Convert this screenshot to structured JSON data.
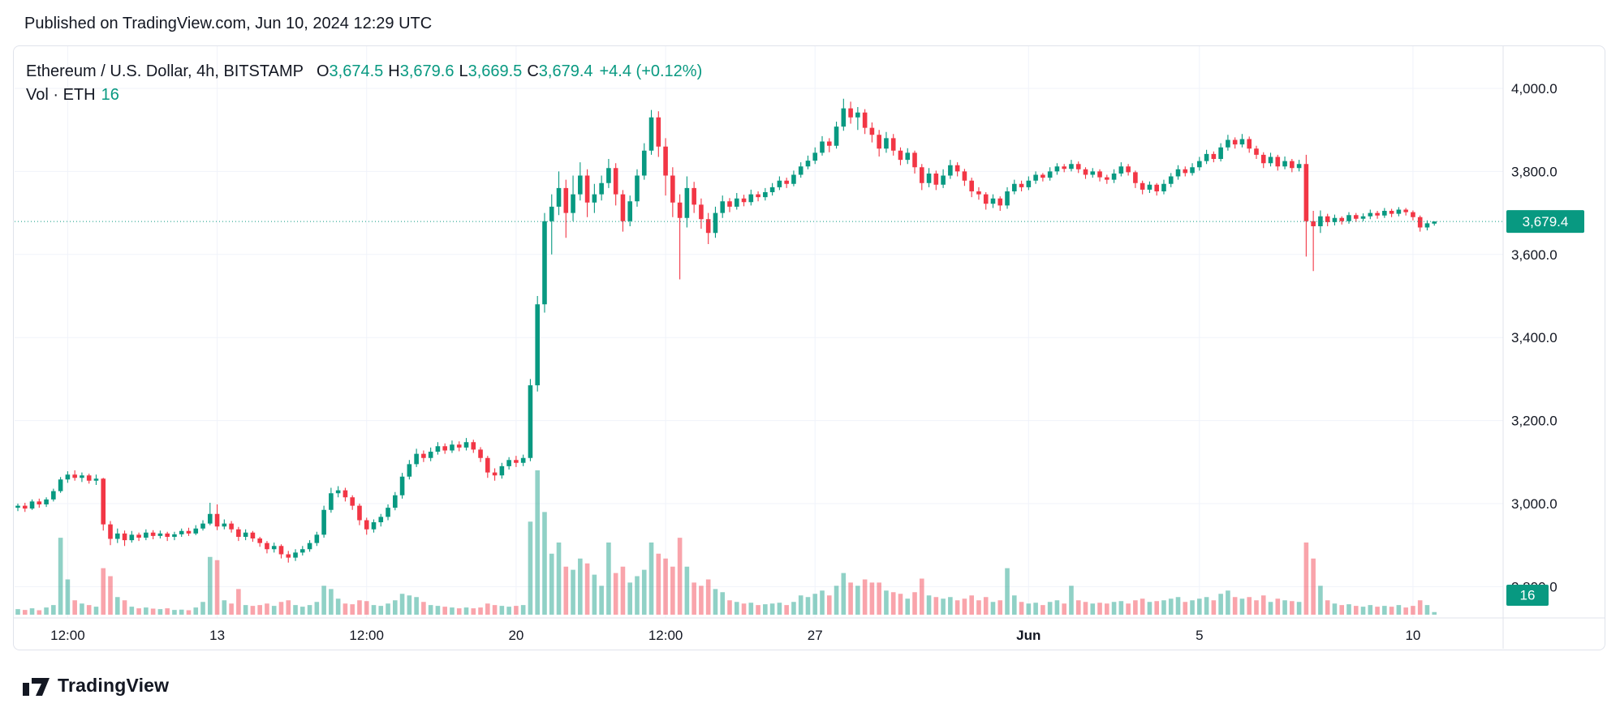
{
  "header": {
    "published": "Published on TradingView.com, Jun 10, 2024 12:29 UTC"
  },
  "legend": {
    "symbol": "Ethereum / U.S. Dollar, 4h, BITSTAMP",
    "ohlc": [
      {
        "label": "O",
        "value": "3,674.5"
      },
      {
        "label": "H",
        "value": "3,679.6"
      },
      {
        "label": "L",
        "value": "3,669.5"
      },
      {
        "label": "C",
        "value": "3,679.4"
      }
    ],
    "change": "+4.4 (+0.12%)",
    "volume_label": "Vol · ETH",
    "volume_value": "16"
  },
  "price_axis": {
    "labels": [
      {
        "text": "4,000.0",
        "price": 4000
      },
      {
        "text": "3,800.0",
        "price": 3800
      },
      {
        "text": "3,600.0",
        "price": 3600
      },
      {
        "text": "3,400.0",
        "price": 3400
      },
      {
        "text": "3,200.0",
        "price": 3200
      },
      {
        "text": "3,000.0",
        "price": 3000
      },
      {
        "text": "2,800.0",
        "price": 2800
      }
    ],
    "last_price_badge": "3,679.4",
    "volume_badge": "16"
  },
  "time_axis": {
    "labels": [
      {
        "text": "12:00",
        "index": 7,
        "bold": false
      },
      {
        "text": "13",
        "index": 28,
        "bold": false
      },
      {
        "text": "12:00",
        "index": 49,
        "bold": false
      },
      {
        "text": "20",
        "index": 70,
        "bold": false
      },
      {
        "text": "12:00",
        "index": 91,
        "bold": false
      },
      {
        "text": "27",
        "index": 112,
        "bold": false
      },
      {
        "text": "Jun",
        "index": 142,
        "bold": true
      },
      {
        "text": "5",
        "index": 166,
        "bold": false
      },
      {
        "text": "10",
        "index": 196,
        "bold": false
      }
    ]
  },
  "footer": {
    "brand": "TradingView"
  },
  "colors": {
    "up": "#089981",
    "down": "#f23645",
    "vol_up": "rgba(8,153,129,0.45)",
    "vol_down": "rgba(242,54,69,0.45)",
    "text": "#131722",
    "grid": "#f0f3fa",
    "border": "#e0e3eb",
    "badge_text": "#ffffff"
  },
  "chart_data": {
    "type": "candlestick",
    "title": "Ethereum / U.S. Dollar",
    "exchange": "BITSTAMP",
    "interval": "4h",
    "start_time": "2024-05-08 08:00 UTC",
    "interval_hours": 4,
    "columns": [
      "open",
      "high",
      "low",
      "close",
      "volume"
    ],
    "last_price": 3679.4,
    "last_volume": 16,
    "price_axis_range_shown": [
      2800,
      4000
    ],
    "legend_note": "volume units as displayed; last bar = 16",
    "candles": [
      [
        2990,
        3000,
        2982,
        2995,
        35
      ],
      [
        2995,
        3002,
        2980,
        2988,
        30
      ],
      [
        2988,
        3010,
        2985,
        3005,
        40
      ],
      [
        3005,
        3012,
        2990,
        2998,
        28
      ],
      [
        2998,
        3015,
        2992,
        3010,
        45
      ],
      [
        3010,
        3036,
        3005,
        3030,
        60
      ],
      [
        3030,
        3064,
        3026,
        3058,
        480
      ],
      [
        3058,
        3078,
        3050,
        3070,
        220
      ],
      [
        3070,
        3080,
        3055,
        3062,
        90
      ],
      [
        3062,
        3075,
        3052,
        3068,
        70
      ],
      [
        3068,
        3072,
        3048,
        3055,
        60
      ],
      [
        3055,
        3070,
        3045,
        3060,
        50
      ],
      [
        3060,
        3062,
        2935,
        2950,
        290
      ],
      [
        2950,
        2958,
        2900,
        2915,
        240
      ],
      [
        2915,
        2940,
        2905,
        2928,
        110
      ],
      [
        2928,
        2935,
        2898,
        2912,
        90
      ],
      [
        2912,
        2934,
        2906,
        2925,
        50
      ],
      [
        2925,
        2930,
        2910,
        2918,
        40
      ],
      [
        2918,
        2938,
        2912,
        2930,
        45
      ],
      [
        2930,
        2936,
        2914,
        2922,
        38
      ],
      [
        2922,
        2935,
        2916,
        2928,
        35
      ],
      [
        2928,
        2932,
        2910,
        2920,
        40
      ],
      [
        2920,
        2932,
        2912,
        2926,
        30
      ],
      [
        2926,
        2940,
        2920,
        2934,
        32
      ],
      [
        2934,
        2942,
        2922,
        2928,
        28
      ],
      [
        2928,
        2948,
        2924,
        2940,
        45
      ],
      [
        2940,
        2960,
        2935,
        2952,
        80
      ],
      [
        2952,
        3002,
        2948,
        2975,
        360
      ],
      [
        2975,
        2998,
        2936,
        2945,
        340
      ],
      [
        2945,
        2962,
        2938,
        2952,
        90
      ],
      [
        2952,
        2958,
        2930,
        2938,
        70
      ],
      [
        2938,
        2944,
        2910,
        2920,
        160
      ],
      [
        2920,
        2938,
        2912,
        2930,
        60
      ],
      [
        2930,
        2934,
        2908,
        2916,
        55
      ],
      [
        2916,
        2920,
        2896,
        2905,
        60
      ],
      [
        2905,
        2910,
        2880,
        2890,
        70
      ],
      [
        2890,
        2906,
        2882,
        2898,
        55
      ],
      [
        2898,
        2902,
        2868,
        2878,
        80
      ],
      [
        2878,
        2886,
        2858,
        2870,
        90
      ],
      [
        2870,
        2890,
        2862,
        2882,
        60
      ],
      [
        2882,
        2898,
        2875,
        2890,
        50
      ],
      [
        2890,
        2912,
        2884,
        2905,
        60
      ],
      [
        2905,
        2932,
        2898,
        2925,
        80
      ],
      [
        2925,
        2995,
        2918,
        2985,
        180
      ],
      [
        2985,
        3038,
        2978,
        3025,
        160
      ],
      [
        3025,
        3042,
        3015,
        3032,
        100
      ],
      [
        3032,
        3038,
        3005,
        3015,
        70
      ],
      [
        3015,
        3020,
        2985,
        2995,
        65
      ],
      [
        2995,
        3000,
        2948,
        2960,
        90
      ],
      [
        2960,
        2966,
        2925,
        2938,
        85
      ],
      [
        2938,
        2962,
        2930,
        2955,
        60
      ],
      [
        2955,
        2975,
        2945,
        2968,
        55
      ],
      [
        2968,
        2998,
        2960,
        2990,
        70
      ],
      [
        2990,
        3028,
        2984,
        3020,
        90
      ],
      [
        3020,
        3074,
        3012,
        3065,
        130
      ],
      [
        3065,
        3105,
        3058,
        3095,
        120
      ],
      [
        3095,
        3132,
        3088,
        3120,
        110
      ],
      [
        3120,
        3128,
        3100,
        3110,
        80
      ],
      [
        3110,
        3135,
        3102,
        3125,
        60
      ],
      [
        3125,
        3148,
        3118,
        3138,
        55
      ],
      [
        3138,
        3145,
        3120,
        3128,
        50
      ],
      [
        3128,
        3152,
        3122,
        3142,
        45
      ],
      [
        3142,
        3150,
        3126,
        3135,
        40
      ],
      [
        3135,
        3158,
        3128,
        3148,
        45
      ],
      [
        3148,
        3154,
        3122,
        3130,
        40
      ],
      [
        3130,
        3136,
        3100,
        3110,
        45
      ],
      [
        3110,
        3115,
        3062,
        3075,
        70
      ],
      [
        3075,
        3085,
        3055,
        3068,
        60
      ],
      [
        3068,
        3098,
        3060,
        3090,
        55
      ],
      [
        3090,
        3112,
        3082,
        3105,
        50
      ],
      [
        3105,
        3115,
        3088,
        3098,
        55
      ],
      [
        3098,
        3118,
        3090,
        3110,
        60
      ],
      [
        3110,
        3300,
        3102,
        3285,
        580
      ],
      [
        3285,
        3500,
        3270,
        3480,
        900
      ],
      [
        3480,
        3700,
        3460,
        3680,
        640
      ],
      [
        3680,
        3745,
        3600,
        3715,
        380
      ],
      [
        3715,
        3800,
        3695,
        3760,
        450
      ],
      [
        3760,
        3780,
        3640,
        3700,
        300
      ],
      [
        3700,
        3790,
        3680,
        3745,
        280
      ],
      [
        3745,
        3822,
        3730,
        3790,
        350
      ],
      [
        3790,
        3805,
        3690,
        3725,
        320
      ],
      [
        3725,
        3770,
        3700,
        3745,
        250
      ],
      [
        3745,
        3790,
        3730,
        3772,
        180
      ],
      [
        3772,
        3830,
        3760,
        3808,
        450
      ],
      [
        3808,
        3820,
        3718,
        3745,
        260
      ],
      [
        3745,
        3755,
        3655,
        3680,
        300
      ],
      [
        3680,
        3742,
        3668,
        3728,
        200
      ],
      [
        3728,
        3805,
        3715,
        3790,
        240
      ],
      [
        3790,
        3868,
        3780,
        3850,
        280
      ],
      [
        3850,
        3948,
        3840,
        3930,
        450
      ],
      [
        3930,
        3945,
        3835,
        3860,
        380
      ],
      [
        3860,
        3880,
        3742,
        3790,
        350
      ],
      [
        3790,
        3810,
        3690,
        3725,
        300
      ],
      [
        3725,
        3745,
        3540,
        3688,
        480
      ],
      [
        3688,
        3788,
        3665,
        3760,
        300
      ],
      [
        3760,
        3775,
        3700,
        3720,
        200
      ],
      [
        3720,
        3735,
        3662,
        3685,
        180
      ],
      [
        3685,
        3700,
        3625,
        3652,
        220
      ],
      [
        3652,
        3715,
        3640,
        3700,
        160
      ],
      [
        3700,
        3742,
        3688,
        3728,
        140
      ],
      [
        3728,
        3736,
        3702,
        3715,
        90
      ],
      [
        3715,
        3748,
        3708,
        3735,
        80
      ],
      [
        3735,
        3744,
        3716,
        3726,
        70
      ],
      [
        3726,
        3756,
        3718,
        3745,
        75
      ],
      [
        3745,
        3752,
        3728,
        3738,
        60
      ],
      [
        3738,
        3760,
        3730,
        3750,
        65
      ],
      [
        3750,
        3772,
        3742,
        3762,
        70
      ],
      [
        3762,
        3788,
        3755,
        3778,
        75
      ],
      [
        3778,
        3785,
        3760,
        3770,
        60
      ],
      [
        3770,
        3802,
        3764,
        3792,
        80
      ],
      [
        3792,
        3822,
        3785,
        3812,
        120
      ],
      [
        3812,
        3838,
        3805,
        3826,
        110
      ],
      [
        3826,
        3858,
        3818,
        3845,
        130
      ],
      [
        3845,
        3885,
        3838,
        3872,
        150
      ],
      [
        3872,
        3880,
        3846,
        3862,
        120
      ],
      [
        3862,
        3920,
        3855,
        3908,
        180
      ],
      [
        3908,
        3975,
        3898,
        3952,
        260
      ],
      [
        3952,
        3968,
        3915,
        3930,
        200
      ],
      [
        3930,
        3955,
        3900,
        3942,
        180
      ],
      [
        3942,
        3950,
        3890,
        3905,
        220
      ],
      [
        3905,
        3918,
        3870,
        3888,
        200
      ],
      [
        3888,
        3900,
        3836,
        3855,
        200
      ],
      [
        3855,
        3895,
        3845,
        3880,
        150
      ],
      [
        3880,
        3890,
        3838,
        3850,
        140
      ],
      [
        3850,
        3858,
        3815,
        3828,
        130
      ],
      [
        3828,
        3856,
        3818,
        3845,
        100
      ],
      [
        3845,
        3850,
        3795,
        3810,
        140
      ],
      [
        3810,
        3818,
        3755,
        3772,
        225
      ],
      [
        3772,
        3808,
        3762,
        3795,
        120
      ],
      [
        3795,
        3802,
        3755,
        3768,
        110
      ],
      [
        3768,
        3805,
        3760,
        3790,
        100
      ],
      [
        3790,
        3828,
        3782,
        3815,
        110
      ],
      [
        3815,
        3822,
        3788,
        3800,
        90
      ],
      [
        3800,
        3806,
        3765,
        3778,
        100
      ],
      [
        3778,
        3785,
        3738,
        3752,
        120
      ],
      [
        3752,
        3762,
        3732,
        3745,
        90
      ],
      [
        3745,
        3750,
        3708,
        3722,
        110
      ],
      [
        3722,
        3745,
        3712,
        3735,
        80
      ],
      [
        3735,
        3740,
        3705,
        3718,
        90
      ],
      [
        3718,
        3762,
        3710,
        3752,
        290
      ],
      [
        3752,
        3780,
        3745,
        3770,
        120
      ],
      [
        3770,
        3778,
        3752,
        3762,
        80
      ],
      [
        3762,
        3788,
        3755,
        3778,
        70
      ],
      [
        3778,
        3800,
        3770,
        3792,
        75
      ],
      [
        3792,
        3796,
        3776,
        3785,
        60
      ],
      [
        3785,
        3810,
        3778,
        3800,
        80
      ],
      [
        3800,
        3820,
        3792,
        3812,
        90
      ],
      [
        3812,
        3818,
        3798,
        3806,
        70
      ],
      [
        3806,
        3828,
        3800,
        3818,
        180
      ],
      [
        3818,
        3824,
        3796,
        3805,
        90
      ],
      [
        3805,
        3810,
        3782,
        3792,
        80
      ],
      [
        3792,
        3808,
        3785,
        3800,
        70
      ],
      [
        3800,
        3805,
        3776,
        3786,
        75
      ],
      [
        3786,
        3792,
        3770,
        3780,
        70
      ],
      [
        3780,
        3805,
        3772,
        3795,
        80
      ],
      [
        3795,
        3822,
        3788,
        3812,
        85
      ],
      [
        3812,
        3818,
        3790,
        3798,
        70
      ],
      [
        3798,
        3802,
        3760,
        3772,
        90
      ],
      [
        3772,
        3778,
        3745,
        3756,
        100
      ],
      [
        3756,
        3776,
        3748,
        3768,
        80
      ],
      [
        3768,
        3772,
        3742,
        3752,
        85
      ],
      [
        3752,
        3780,
        3745,
        3770,
        90
      ],
      [
        3770,
        3796,
        3762,
        3788,
        100
      ],
      [
        3788,
        3815,
        3780,
        3805,
        110
      ],
      [
        3805,
        3812,
        3788,
        3796,
        80
      ],
      [
        3796,
        3820,
        3790,
        3810,
        90
      ],
      [
        3810,
        3835,
        3802,
        3825,
        100
      ],
      [
        3825,
        3852,
        3818,
        3842,
        110
      ],
      [
        3842,
        3848,
        3822,
        3830,
        90
      ],
      [
        3830,
        3868,
        3824,
        3858,
        130
      ],
      [
        3858,
        3888,
        3850,
        3876,
        150
      ],
      [
        3876,
        3882,
        3855,
        3865,
        110
      ],
      [
        3865,
        3890,
        3858,
        3878,
        100
      ],
      [
        3878,
        3884,
        3845,
        3855,
        110
      ],
      [
        3855,
        3862,
        3830,
        3840,
        90
      ],
      [
        3840,
        3846,
        3808,
        3820,
        120
      ],
      [
        3820,
        3845,
        3812,
        3835,
        80
      ],
      [
        3835,
        3840,
        3802,
        3812,
        100
      ],
      [
        3812,
        3836,
        3805,
        3825,
        90
      ],
      [
        3825,
        3830,
        3798,
        3808,
        85
      ],
      [
        3808,
        3828,
        3800,
        3818,
        80
      ],
      [
        3818,
        3840,
        3595,
        3680,
        450
      ],
      [
        3680,
        3705,
        3560,
        3668,
        350
      ],
      [
        3668,
        3706,
        3652,
        3692,
        180
      ],
      [
        3692,
        3698,
        3668,
        3678,
        90
      ],
      [
        3678,
        3696,
        3670,
        3688,
        70
      ],
      [
        3688,
        3692,
        3672,
        3680,
        60
      ],
      [
        3680,
        3702,
        3674,
        3695,
        65
      ],
      [
        3695,
        3700,
        3678,
        3686,
        55
      ],
      [
        3686,
        3699,
        3680,
        3692,
        50
      ],
      [
        3692,
        3708,
        3685,
        3700,
        60
      ],
      [
        3700,
        3705,
        3686,
        3694,
        50
      ],
      [
        3694,
        3712,
        3688,
        3705,
        55
      ],
      [
        3705,
        3710,
        3690,
        3698,
        50
      ],
      [
        3698,
        3714,
        3692,
        3708,
        60
      ],
      [
        3708,
        3712,
        3694,
        3702,
        45
      ],
      [
        3702,
        3706,
        3682,
        3690,
        55
      ],
      [
        3690,
        3694,
        3655,
        3665,
        90
      ],
      [
        3665,
        3682,
        3658,
        3675,
        60
      ],
      [
        3674.5,
        3679.6,
        3669.5,
        3679.4,
        16
      ]
    ]
  }
}
